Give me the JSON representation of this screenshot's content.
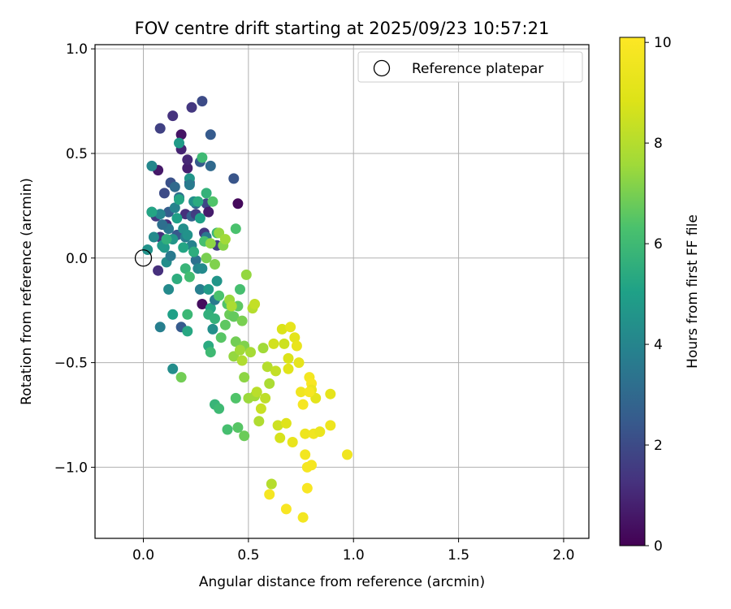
{
  "chart_data": {
    "type": "scatter",
    "title": "FOV centre drift starting at 2025/09/23 10:57:21",
    "xlabel": "Angular distance from reference (arcmin)",
    "ylabel": "Rotation from reference (arcmin)",
    "xlim": [
      -0.23,
      2.12
    ],
    "ylim": [
      -1.34,
      1.02
    ],
    "xticks": [
      0.0,
      0.5,
      1.0,
      1.5,
      2.0
    ],
    "xtick_labels": [
      "0.0",
      "0.5",
      "1.0",
      "1.5",
      "2.0"
    ],
    "yticks": [
      1.0,
      0.5,
      0.0,
      -0.5,
      -1.0
    ],
    "ytick_labels": [
      "1.0",
      "0.5",
      "0.0",
      "−0.5",
      "−1.0"
    ],
    "grid": true,
    "legend": {
      "position": "top-right",
      "label": "Reference platepar"
    },
    "reference_point": {
      "x": 0.0,
      "y": 0.0
    },
    "colorbar": {
      "label": "Hours from first FF file",
      "range": [
        0,
        10.1
      ],
      "ticks": [
        0,
        2,
        4,
        6,
        8,
        10
      ],
      "tick_labels": [
        "0",
        "2",
        "4",
        "6",
        "8",
        "10"
      ],
      "colormap": "viridis"
    },
    "series": [
      {
        "name": "FOV centre",
        "points": [
          [
            0.04,
            0.22,
            1.8
          ],
          [
            0.06,
            0.2,
            1.5
          ],
          [
            0.08,
            0.1,
            1.2
          ],
          [
            0.07,
            0.42,
            0.6
          ],
          [
            0.08,
            0.62,
            1.7
          ],
          [
            0.1,
            0.31,
            2.0
          ],
          [
            0.11,
            0.16,
            1.1
          ],
          [
            0.12,
            0.22,
            2.6
          ],
          [
            0.13,
            0.36,
            2.2
          ],
          [
            0.14,
            0.68,
            1.3
          ],
          [
            0.15,
            0.34,
            3.0
          ],
          [
            0.16,
            0.11,
            2.4
          ],
          [
            0.17,
            0.29,
            3.3
          ],
          [
            0.18,
            0.52,
            0.9
          ],
          [
            0.18,
            0.59,
            0.5
          ],
          [
            0.2,
            0.21,
            1.2
          ],
          [
            0.21,
            0.43,
            0.8
          ],
          [
            0.21,
            0.47,
            1.0
          ],
          [
            0.22,
            0.36,
            2.0
          ],
          [
            0.23,
            0.72,
            1.4
          ],
          [
            0.23,
            0.2,
            2.7
          ],
          [
            0.25,
            0.26,
            2.9
          ],
          [
            0.25,
            0.21,
            1.6
          ],
          [
            0.27,
            0.46,
            2.5
          ],
          [
            0.28,
            0.75,
            2.0
          ],
          [
            0.29,
            0.12,
            1.4
          ],
          [
            0.3,
            0.26,
            1.9
          ],
          [
            0.31,
            0.22,
            0.7
          ],
          [
            0.32,
            0.44,
            3.0
          ],
          [
            0.32,
            0.59,
            2.5
          ],
          [
            0.35,
            0.06,
            1.6
          ],
          [
            0.43,
            0.38,
            2.3
          ],
          [
            0.45,
            0.26,
            0.2
          ],
          [
            0.28,
            -0.22,
            0.3
          ],
          [
            0.18,
            -0.33,
            2.5
          ],
          [
            0.07,
            -0.06,
            1.2
          ],
          [
            0.08,
            -0.33,
            3.8
          ],
          [
            0.02,
            0.04,
            4.5
          ],
          [
            0.05,
            0.1,
            4.2
          ],
          [
            0.08,
            0.21,
            4.0
          ],
          [
            0.1,
            0.05,
            4.7
          ],
          [
            0.11,
            -0.02,
            4.3
          ],
          [
            0.12,
            0.14,
            3.5
          ],
          [
            0.14,
            0.09,
            4.6
          ],
          [
            0.15,
            0.24,
            3.9
          ],
          [
            0.16,
            0.19,
            5.0
          ],
          [
            0.17,
            0.55,
            4.8
          ],
          [
            0.17,
            0.28,
            5.2
          ],
          [
            0.19,
            0.14,
            4.4
          ],
          [
            0.2,
            0.1,
            3.7
          ],
          [
            0.21,
            0.11,
            4.5
          ],
          [
            0.22,
            0.38,
            4.6
          ],
          [
            0.22,
            0.35,
            3.6
          ],
          [
            0.23,
            0.06,
            3.9
          ],
          [
            0.24,
            0.27,
            4.4
          ],
          [
            0.25,
            -0.01,
            3.3
          ],
          [
            0.26,
            -0.05,
            4.1
          ],
          [
            0.27,
            -0.15,
            3.8
          ],
          [
            0.28,
            -0.05,
            4.2
          ],
          [
            0.3,
            0.1,
            3.5
          ],
          [
            0.31,
            -0.15,
            4.8
          ],
          [
            0.32,
            -0.24,
            5.2
          ],
          [
            0.33,
            -0.34,
            4.4
          ],
          [
            0.34,
            -0.2,
            3.6
          ],
          [
            0.35,
            -0.11,
            4.6
          ],
          [
            0.12,
            -0.15,
            4.2
          ],
          [
            0.14,
            -0.53,
            4.3
          ],
          [
            0.13,
            0.01,
            3.6
          ],
          [
            0.04,
            0.44,
            4.1
          ],
          [
            0.09,
            0.16,
            3.2
          ],
          [
            0.04,
            0.22,
            5.2
          ],
          [
            0.09,
            0.06,
            4.8
          ],
          [
            0.11,
            0.09,
            5.6
          ],
          [
            0.14,
            -0.27,
            5.0
          ],
          [
            0.16,
            -0.1,
            5.5
          ],
          [
            0.19,
            0.05,
            5.2
          ],
          [
            0.2,
            -0.05,
            5.8
          ],
          [
            0.21,
            -0.27,
            5.9
          ],
          [
            0.21,
            -0.35,
            5.3
          ],
          [
            0.22,
            -0.09,
            6.1
          ],
          [
            0.24,
            0.03,
            5.5
          ],
          [
            0.26,
            0.27,
            5.4
          ],
          [
            0.27,
            0.19,
            5.0
          ],
          [
            0.28,
            0.48,
            6.0
          ],
          [
            0.29,
            0.08,
            6.2
          ],
          [
            0.3,
            0.31,
            5.7
          ],
          [
            0.31,
            -0.27,
            5.6
          ],
          [
            0.31,
            -0.42,
            5.4
          ],
          [
            0.32,
            -0.45,
            6.0
          ],
          [
            0.33,
            0.27,
            6.4
          ],
          [
            0.34,
            -0.29,
            5.7
          ],
          [
            0.35,
            0.12,
            5.9
          ],
          [
            0.36,
            -0.18,
            6.3
          ],
          [
            0.37,
            -0.38,
            6.5
          ],
          [
            0.39,
            -0.32,
            6.6
          ],
          [
            0.4,
            -0.22,
            6.4
          ],
          [
            0.41,
            -0.27,
            6.8
          ],
          [
            0.43,
            -0.28,
            6.7
          ],
          [
            0.44,
            0.14,
            6.3
          ],
          [
            0.44,
            -0.4,
            6.9
          ],
          [
            0.45,
            -0.23,
            6.6
          ],
          [
            0.46,
            -0.15,
            6.2
          ],
          [
            0.47,
            -0.3,
            7.0
          ],
          [
            0.48,
            -0.42,
            7.1
          ],
          [
            0.49,
            -0.08,
            7.4
          ],
          [
            0.34,
            -0.7,
            5.8
          ],
          [
            0.36,
            -0.72,
            6.0
          ],
          [
            0.4,
            -0.82,
            6.2
          ],
          [
            0.44,
            -0.67,
            6.4
          ],
          [
            0.45,
            -0.81,
            6.5
          ],
          [
            0.48,
            -0.85,
            6.8
          ],
          [
            0.18,
            -0.57,
            6.9
          ],
          [
            0.3,
            0.0,
            7.0
          ],
          [
            0.32,
            0.07,
            7.3
          ],
          [
            0.34,
            -0.03,
            7.1
          ],
          [
            0.36,
            0.12,
            7.4
          ],
          [
            0.38,
            0.06,
            7.2
          ],
          [
            0.39,
            0.09,
            7.6
          ],
          [
            0.41,
            -0.2,
            7.5
          ],
          [
            0.42,
            -0.23,
            7.8
          ],
          [
            0.43,
            -0.47,
            7.4
          ],
          [
            0.46,
            -0.44,
            7.6
          ],
          [
            0.47,
            -0.49,
            7.9
          ],
          [
            0.48,
            -0.57,
            7.3
          ],
          [
            0.5,
            -0.67,
            7.5
          ],
          [
            0.51,
            -0.45,
            7.7
          ],
          [
            0.52,
            -0.24,
            8.0
          ],
          [
            0.53,
            -0.22,
            8.3
          ],
          [
            0.53,
            -0.66,
            7.6
          ],
          [
            0.54,
            -0.64,
            8.1
          ],
          [
            0.55,
            -0.78,
            7.9
          ],
          [
            0.56,
            -0.72,
            8.4
          ],
          [
            0.57,
            -0.43,
            7.6
          ],
          [
            0.58,
            -0.67,
            8.2
          ],
          [
            0.59,
            -0.52,
            8.0
          ],
          [
            0.6,
            -0.6,
            7.8
          ],
          [
            0.61,
            -1.08,
            8.0
          ],
          [
            0.62,
            -0.41,
            8.6
          ],
          [
            0.63,
            -0.54,
            8.3
          ],
          [
            0.64,
            -0.8,
            8.5
          ],
          [
            0.65,
            -0.86,
            8.7
          ],
          [
            0.66,
            -0.34,
            8.8
          ],
          [
            0.67,
            -0.41,
            8.5
          ],
          [
            0.68,
            -0.79,
            8.9
          ],
          [
            0.69,
            -0.53,
            9.0
          ],
          [
            0.69,
            -0.48,
            8.8
          ],
          [
            0.7,
            -0.33,
            9.2
          ],
          [
            0.71,
            -0.88,
            9.3
          ],
          [
            0.72,
            -0.38,
            9.1
          ],
          [
            0.73,
            -0.42,
            9.3
          ],
          [
            0.74,
            -0.5,
            9.2
          ],
          [
            0.75,
            -0.64,
            9.6
          ],
          [
            0.76,
            -0.7,
            9.8
          ],
          [
            0.77,
            -0.84,
            9.5
          ],
          [
            0.77,
            -0.94,
            9.7
          ],
          [
            0.78,
            -1.0,
            9.8
          ],
          [
            0.78,
            -1.1,
            9.9
          ],
          [
            0.79,
            -0.57,
            9.7
          ],
          [
            0.8,
            -0.6,
            9.9
          ],
          [
            0.8,
            -0.63,
            9.4
          ],
          [
            0.8,
            -0.99,
            9.8
          ],
          [
            0.81,
            -0.84,
            9.6
          ],
          [
            0.82,
            -0.67,
            9.1
          ],
          [
            0.84,
            -0.83,
            9.4
          ],
          [
            0.89,
            -0.65,
            9.2
          ],
          [
            0.89,
            -0.8,
            9.5
          ],
          [
            0.97,
            -0.94,
            9.6
          ],
          [
            0.6,
            -1.13,
            9.8
          ],
          [
            0.68,
            -1.2,
            9.9
          ],
          [
            0.76,
            -1.24,
            9.7
          ],
          [
            0.79,
            -0.64,
            9.8
          ]
        ]
      }
    ]
  }
}
